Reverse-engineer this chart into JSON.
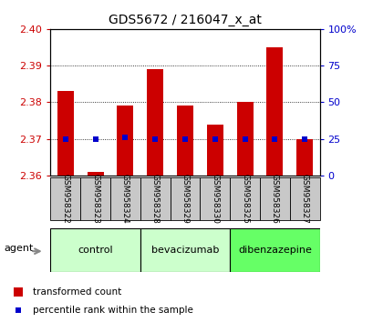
{
  "title": "GDS5672 / 216047_x_at",
  "samples": [
    "GSM958322",
    "GSM958323",
    "GSM958324",
    "GSM958328",
    "GSM958329",
    "GSM958330",
    "GSM958325",
    "GSM958326",
    "GSM958327"
  ],
  "bar_values": [
    2.383,
    2.361,
    2.379,
    2.389,
    2.379,
    2.374,
    2.38,
    2.395,
    2.37
  ],
  "percentile_values": [
    25,
    25,
    26,
    25,
    25,
    25,
    25,
    25,
    25
  ],
  "bar_bottom": 2.36,
  "ylim_left": [
    2.36,
    2.4
  ],
  "ylim_right": [
    0,
    100
  ],
  "yticks_left": [
    2.36,
    2.37,
    2.38,
    2.39,
    2.4
  ],
  "yticks_right": [
    0,
    25,
    50,
    75,
    100
  ],
  "ytick_labels_right": [
    "0",
    "25",
    "50",
    "75",
    "100%"
  ],
  "bar_color": "#cc0000",
  "dot_color": "#0000cc",
  "groups": [
    {
      "label": "control",
      "indices": [
        0,
        1,
        2
      ],
      "color": "#ccffcc"
    },
    {
      "label": "bevacizumab",
      "indices": [
        3,
        4,
        5
      ],
      "color": "#ccffcc"
    },
    {
      "label": "dibenzazepine",
      "indices": [
        6,
        7,
        8
      ],
      "color": "#66ff66"
    }
  ],
  "agent_label": "agent",
  "legend_bar_label": "transformed count",
  "legend_dot_label": "percentile rank within the sample",
  "left_tick_color": "#cc0000",
  "right_tick_color": "#0000cc",
  "figsize": [
    4.1,
    3.54
  ],
  "dpi": 100,
  "xtick_box_color": "#c8c8c8",
  "bar_width": 0.55
}
